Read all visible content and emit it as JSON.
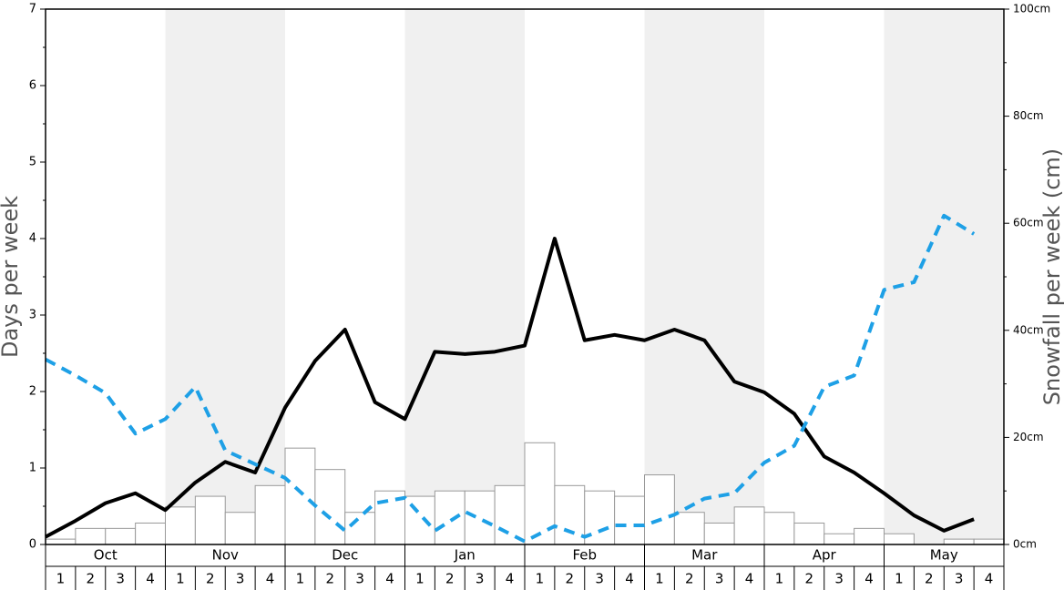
{
  "chart_data": {
    "type": "bar",
    "y_label": "Days per week",
    "y2_label": "Snowfall per week (cm)",
    "months": [
      "Oct",
      "Nov",
      "Dec",
      "Jan",
      "Feb",
      "Mar",
      "Apr",
      "May"
    ],
    "shaded_months": [
      false,
      true,
      false,
      true,
      false,
      true,
      false,
      true
    ],
    "shade_color": "#f0f0f0",
    "categories": [
      "1",
      "2",
      "3",
      "4",
      "1",
      "2",
      "3",
      "4",
      "1",
      "2",
      "3",
      "4",
      "1",
      "2",
      "3",
      "4",
      "1",
      "2",
      "3",
      "4",
      "1",
      "2",
      "3",
      "4",
      "1",
      "2",
      "3",
      "4",
      "1",
      "2",
      "3",
      "4"
    ],
    "ylim": [
      0,
      7
    ],
    "yticks": [
      0,
      1,
      2,
      3,
      4,
      5,
      6,
      7
    ],
    "y2lim": [
      0,
      100
    ],
    "y2ticks": [
      {
        "value": 0,
        "label": "0cm"
      },
      {
        "value": 20,
        "label": "20cm"
      },
      {
        "value": 40,
        "label": "40cm"
      },
      {
        "value": 60,
        "label": "60cm"
      },
      {
        "value": 80,
        "label": "80cm"
      },
      {
        "value": 100,
        "label": "100cm"
      }
    ],
    "series": [
      {
        "type": "bar",
        "axis": "y2",
        "color": "#ffffff",
        "stroke": "#999999",
        "values": [
          1,
          3,
          3,
          4,
          7,
          9,
          6,
          11,
          18,
          14,
          6,
          10,
          9,
          10,
          10,
          11,
          19,
          11,
          10,
          9,
          13,
          6,
          4,
          7,
          6,
          4,
          2,
          3,
          2,
          0,
          1,
          1
        ]
      },
      {
        "type": "line",
        "color": "#000000",
        "dashed": false,
        "values": [
          0.1,
          0.31,
          0.54,
          0.67,
          0.45,
          0.81,
          1.08,
          0.94,
          1.79,
          2.4,
          2.81,
          1.86,
          1.64,
          2.52,
          2.49,
          2.52,
          2.6,
          4.0,
          2.67,
          2.74,
          2.67,
          2.81,
          2.67,
          2.13,
          1.99,
          1.71,
          1.15,
          0.94,
          0.67,
          0.38,
          0.18,
          0.33
        ]
      },
      {
        "type": "line",
        "color": "#1ea0e6",
        "dashed": true,
        "values": [
          2.42,
          2.21,
          1.98,
          1.45,
          1.64,
          2.06,
          1.23,
          1.05,
          0.87,
          0.51,
          0.18,
          0.54,
          0.61,
          0.18,
          0.43,
          0.24,
          0.04,
          0.24,
          0.1,
          0.25,
          0.25,
          0.39,
          0.6,
          0.67,
          1.07,
          1.29,
          2.06,
          2.21,
          3.33,
          3.43,
          4.3,
          4.06
        ]
      }
    ]
  }
}
